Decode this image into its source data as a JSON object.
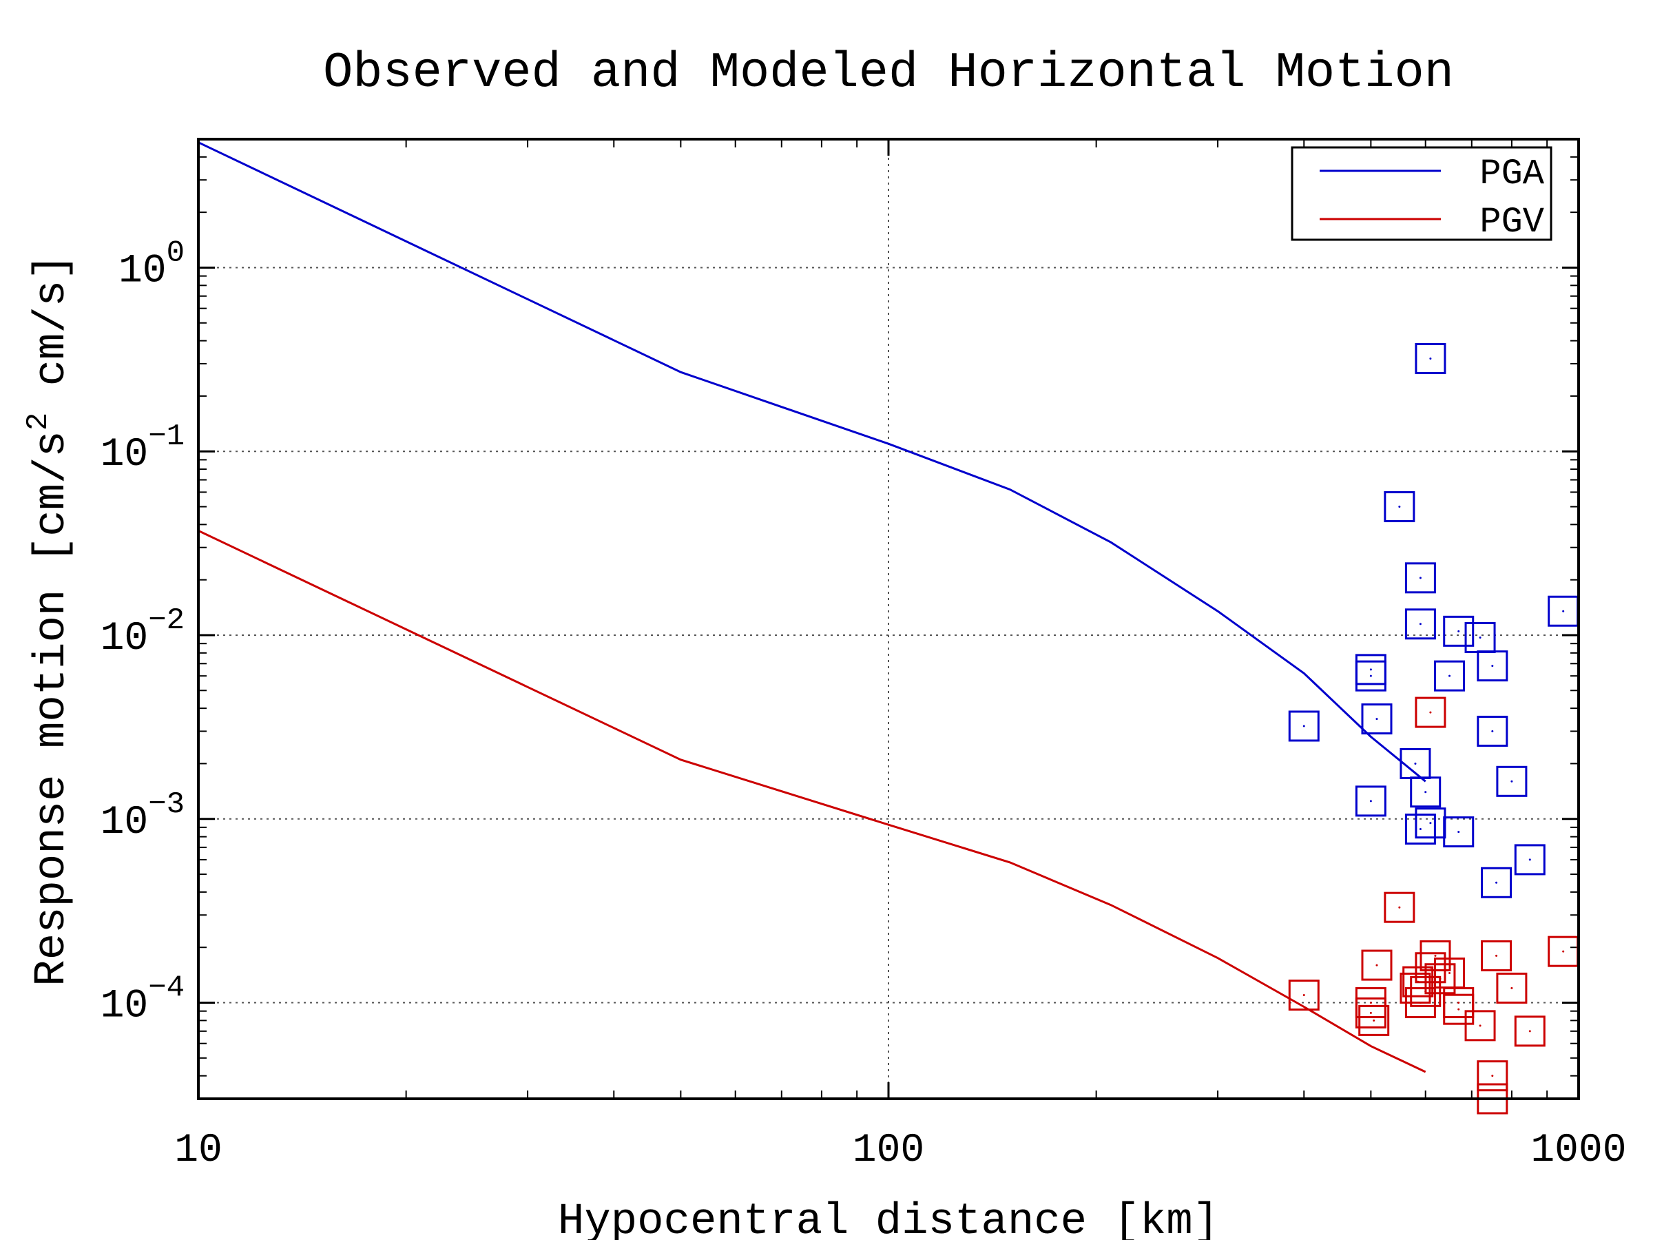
{
  "chart_data": {
    "type": "scatter",
    "title": "Observed and Modeled Horizontal Motion",
    "xlabel": "Hypocentral distance [km]",
    "ylabel_parts": [
      "Response motion  [cm/s",
      "2",
      "  cm/s]"
    ],
    "x_scale": "log",
    "y_scale": "log",
    "xlim": [
      10,
      1000
    ],
    "ylim": [
      3e-05,
      5
    ],
    "x_ticks": [
      {
        "value": 10,
        "label": "10"
      },
      {
        "value": 100,
        "label": "100"
      },
      {
        "value": 1000,
        "label": "1000"
      }
    ],
    "y_ticks": [
      {
        "value": 1,
        "base": "10",
        "exp": "0"
      },
      {
        "value": 0.1,
        "base": "10",
        "exp": "−1"
      },
      {
        "value": 0.01,
        "base": "10",
        "exp": "−2"
      },
      {
        "value": 0.001,
        "base": "10",
        "exp": "−3"
      },
      {
        "value": 0.0001,
        "base": "10",
        "exp": "−4"
      }
    ],
    "grid": true,
    "legend_position": "top-right",
    "series": [
      {
        "name": "PGA",
        "color": "#0000cc",
        "line": [
          [
            10,
            4.8
          ],
          [
            50,
            0.27
          ],
          [
            100,
            0.11
          ],
          [
            150,
            0.062
          ],
          [
            210,
            0.032
          ],
          [
            300,
            0.0135
          ],
          [
            400,
            0.0062
          ],
          [
            500,
            0.0028
          ],
          [
            600,
            0.0016
          ]
        ],
        "points": [
          [
            400,
            0.0032
          ],
          [
            500,
            0.0065
          ],
          [
            500,
            0.006
          ],
          [
            510,
            0.0035
          ],
          [
            500,
            0.00125
          ],
          [
            550,
            0.05
          ],
          [
            590,
            0.0205
          ],
          [
            590,
            0.0115
          ],
          [
            580,
            0.002
          ],
          [
            600,
            0.0014
          ],
          [
            590,
            0.00088
          ],
          [
            610,
            0.00095
          ],
          [
            610,
            0.32
          ],
          [
            650,
            0.006
          ],
          [
            670,
            0.0105
          ],
          [
            670,
            0.00085
          ],
          [
            720,
            0.0097
          ],
          [
            750,
            0.0068
          ],
          [
            750,
            0.003
          ],
          [
            760,
            0.00045
          ],
          [
            800,
            0.0016
          ],
          [
            850,
            0.0006
          ],
          [
            950,
            0.0135
          ]
        ]
      },
      {
        "name": "PGV",
        "color": "#cc0000",
        "line": [
          [
            10,
            0.037
          ],
          [
            50,
            0.0021
          ],
          [
            100,
            0.00093
          ],
          [
            150,
            0.00058
          ],
          [
            210,
            0.00034
          ],
          [
            300,
            0.000175
          ],
          [
            400,
            9.5e-05
          ],
          [
            500,
            5.8e-05
          ],
          [
            600,
            4.2e-05
          ]
        ],
        "points": [
          [
            400,
            0.00011
          ],
          [
            500,
            0.0001
          ],
          [
            500,
            8.8e-05
          ],
          [
            505,
            8e-05
          ],
          [
            510,
            0.00016
          ],
          [
            550,
            0.00033
          ],
          [
            580,
            0.00012
          ],
          [
            585,
            0.00013
          ],
          [
            590,
            0.0001
          ],
          [
            600,
            0.000115
          ],
          [
            610,
            0.0038
          ],
          [
            610,
            0.000155
          ],
          [
            620,
            0.00018
          ],
          [
            630,
            0.000135
          ],
          [
            650,
            0.000145
          ],
          [
            670,
            0.0001
          ],
          [
            670,
            9.2e-05
          ],
          [
            720,
            7.5e-05
          ],
          [
            750,
            4e-05
          ],
          [
            750,
            3e-05
          ],
          [
            760,
            0.00018
          ],
          [
            800,
            0.00012
          ],
          [
            850,
            7e-05
          ],
          [
            950,
            0.00019
          ]
        ]
      }
    ]
  }
}
